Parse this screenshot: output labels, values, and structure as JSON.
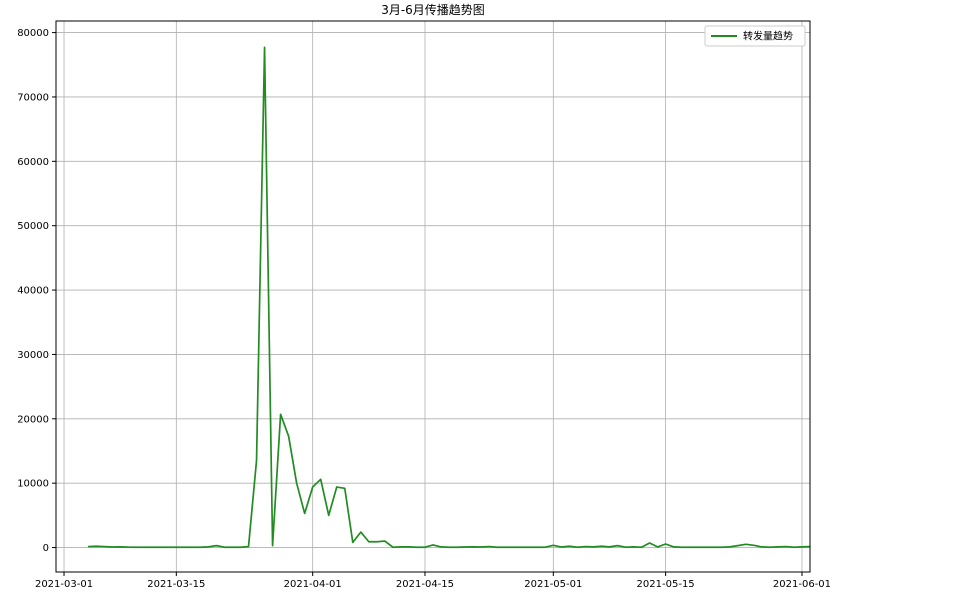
{
  "chart_data": {
    "type": "line",
    "title": "3月-6月传播趋势图",
    "xlabel": "",
    "ylabel": "",
    "legend": {
      "placement": "top-right",
      "entries": [
        "转发量趋势"
      ]
    },
    "grid": true,
    "x_tick_labels": [
      "2021-03-01",
      "2021-03-15",
      "2021-04-01",
      "2021-04-15",
      "2021-05-01",
      "2021-05-15",
      "2021-06-01"
    ],
    "y_ticks": [
      0,
      10000,
      20000,
      30000,
      40000,
      50000,
      60000,
      70000,
      80000
    ],
    "xlim": [
      "2021-02-28",
      "2021-06-02"
    ],
    "ylim": [
      -3800,
      81800
    ],
    "series": [
      {
        "name": "转发量趋势",
        "color": "#228b22",
        "points": [
          [
            "2021-03-04",
            150
          ],
          [
            "2021-03-05",
            200
          ],
          [
            "2021-03-06",
            150
          ],
          [
            "2021-03-07",
            80
          ],
          [
            "2021-03-08",
            100
          ],
          [
            "2021-03-09",
            60
          ],
          [
            "2021-03-10",
            50
          ],
          [
            "2021-03-11",
            50
          ],
          [
            "2021-03-12",
            50
          ],
          [
            "2021-03-13",
            50
          ],
          [
            "2021-03-14",
            50
          ],
          [
            "2021-03-15",
            50
          ],
          [
            "2021-03-16",
            50
          ],
          [
            "2021-03-17",
            50
          ],
          [
            "2021-03-18",
            50
          ],
          [
            "2021-03-19",
            100
          ],
          [
            "2021-03-20",
            300
          ],
          [
            "2021-03-21",
            50
          ],
          [
            "2021-03-22",
            50
          ],
          [
            "2021-03-23",
            50
          ],
          [
            "2021-03-24",
            150
          ],
          [
            "2021-03-25",
            13500
          ],
          [
            "2021-03-26",
            77700
          ],
          [
            "2021-03-27",
            300
          ],
          [
            "2021-03-28",
            20700
          ],
          [
            "2021-03-29",
            17300
          ],
          [
            "2021-03-30",
            10000
          ],
          [
            "2021-03-31",
            5300
          ],
          [
            "2021-04-01",
            9400
          ],
          [
            "2021-04-02",
            10600
          ],
          [
            "2021-04-03",
            5000
          ],
          [
            "2021-04-04",
            9400
          ],
          [
            "2021-04-05",
            9200
          ],
          [
            "2021-04-06",
            800
          ],
          [
            "2021-04-07",
            2400
          ],
          [
            "2021-04-08",
            900
          ],
          [
            "2021-04-09",
            900
          ],
          [
            "2021-04-10",
            1000
          ],
          [
            "2021-04-11",
            50
          ],
          [
            "2021-04-12",
            100
          ],
          [
            "2021-04-13",
            100
          ],
          [
            "2021-04-14",
            50
          ],
          [
            "2021-04-15",
            50
          ],
          [
            "2021-04-16",
            400
          ],
          [
            "2021-04-17",
            100
          ],
          [
            "2021-04-18",
            50
          ],
          [
            "2021-04-19",
            50
          ],
          [
            "2021-04-20",
            80
          ],
          [
            "2021-04-21",
            100
          ],
          [
            "2021-04-22",
            80
          ],
          [
            "2021-04-23",
            150
          ],
          [
            "2021-04-24",
            50
          ],
          [
            "2021-04-25",
            50
          ],
          [
            "2021-04-26",
            50
          ],
          [
            "2021-04-27",
            50
          ],
          [
            "2021-04-28",
            50
          ],
          [
            "2021-04-29",
            50
          ],
          [
            "2021-04-30",
            50
          ],
          [
            "2021-05-01",
            350
          ],
          [
            "2021-05-02",
            80
          ],
          [
            "2021-05-03",
            200
          ],
          [
            "2021-05-04",
            50
          ],
          [
            "2021-05-05",
            150
          ],
          [
            "2021-05-06",
            100
          ],
          [
            "2021-05-07",
            200
          ],
          [
            "2021-05-08",
            100
          ],
          [
            "2021-05-09",
            300
          ],
          [
            "2021-05-10",
            50
          ],
          [
            "2021-05-11",
            100
          ],
          [
            "2021-05-12",
            50
          ],
          [
            "2021-05-13",
            700
          ],
          [
            "2021-05-14",
            100
          ],
          [
            "2021-05-15",
            550
          ],
          [
            "2021-05-16",
            100
          ],
          [
            "2021-05-17",
            50
          ],
          [
            "2021-05-18",
            50
          ],
          [
            "2021-05-19",
            50
          ],
          [
            "2021-05-20",
            50
          ],
          [
            "2021-05-21",
            50
          ],
          [
            "2021-05-22",
            50
          ],
          [
            "2021-05-23",
            100
          ],
          [
            "2021-05-24",
            300
          ],
          [
            "2021-05-25",
            500
          ],
          [
            "2021-05-26",
            350
          ],
          [
            "2021-05-27",
            100
          ],
          [
            "2021-05-28",
            50
          ],
          [
            "2021-05-29",
            100
          ],
          [
            "2021-05-30",
            150
          ],
          [
            "2021-05-31",
            50
          ],
          [
            "2021-06-01",
            100
          ],
          [
            "2021-06-02",
            150
          ]
        ]
      }
    ]
  }
}
